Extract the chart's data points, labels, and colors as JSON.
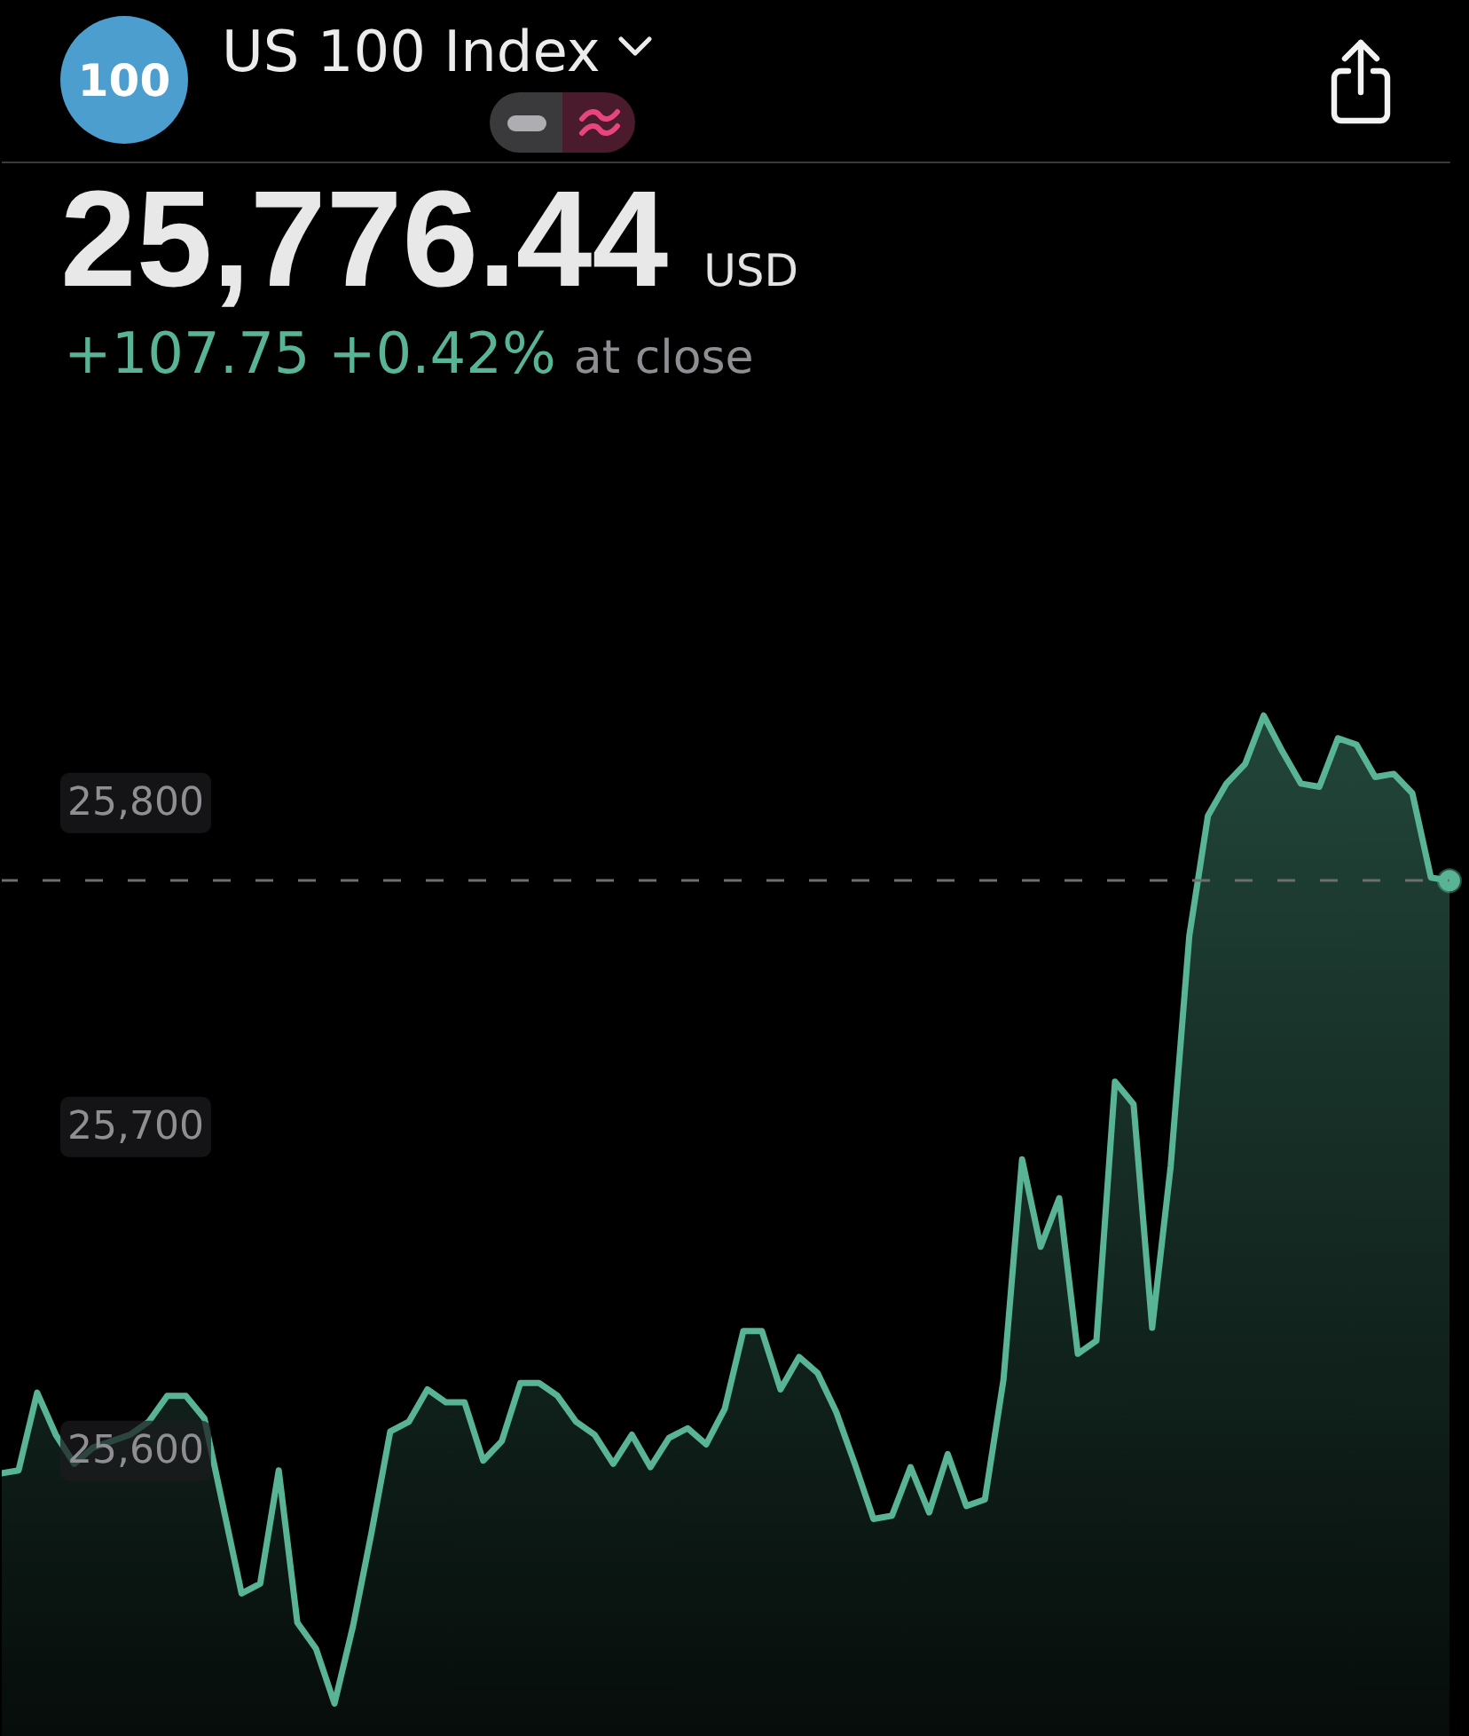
{
  "chart_data": {
    "type": "area",
    "title": "US 100 Index",
    "annotations": [
      "100",
      "25,776.44",
      "USD",
      "+107.75 +0.42%",
      "at close"
    ],
    "categories": [
      null,
      null,
      null,
      null,
      null,
      null,
      null,
      null,
      null,
      null,
      null,
      null,
      null,
      null,
      null,
      null,
      null,
      null,
      null,
      null,
      null,
      null,
      null,
      null,
      null,
      null,
      null,
      null,
      null,
      null,
      null,
      null,
      null,
      null,
      null,
      null,
      null,
      null,
      null,
      null,
      null,
      null,
      null,
      null,
      null,
      null,
      null,
      null,
      null,
      null,
      null,
      null,
      null,
      null,
      null,
      null,
      null,
      null,
      null,
      null,
      null,
      null,
      null,
      null,
      null,
      null,
      null,
      null,
      null,
      null,
      null,
      null,
      null,
      null,
      null,
      null,
      null,
      null,
      null
    ],
    "values": [
      25593,
      25594,
      25618,
      25605,
      25596,
      25601,
      25603,
      25605,
      25609,
      25617,
      25617,
      25610,
      25583,
      25556,
      25559,
      25594,
      25547,
      25539,
      25522,
      25546,
      25575,
      25606,
      25609,
      25619,
      25615,
      25615,
      25597,
      25603,
      25621,
      25621,
      25617,
      25609,
      25605,
      25596,
      25605,
      25595,
      25604,
      25607,
      25602,
      25613,
      25637,
      25637,
      25619,
      25629,
      25624,
      25612,
      25596,
      25579,
      25580,
      25595,
      25581,
      25599,
      25583,
      25585,
      25622,
      25690,
      25663,
      25678,
      25630,
      25634,
      25714,
      25707,
      25638,
      25688,
      25759,
      25796,
      25806,
      25812,
      25827,
      25816,
      25806,
      25805,
      25820,
      25818,
      25808,
      25809,
      25803,
      25777,
      25776
    ],
    "color": "#58b494",
    "ylim": [
      25512,
      25998
    ],
    "yticks": [
      {
        "value": 25600,
        "label": "25,600"
      },
      {
        "value": 25700,
        "label": "25,700"
      },
      {
        "value": 25800,
        "label": "25,800"
      }
    ],
    "tick_labels": "y",
    "grid": false,
    "marker": "none",
    "ref_lines": [
      {
        "axis": "y",
        "value": 25776,
        "color": "#6e6e70",
        "line_style": "dashed"
      }
    ]
  }
}
